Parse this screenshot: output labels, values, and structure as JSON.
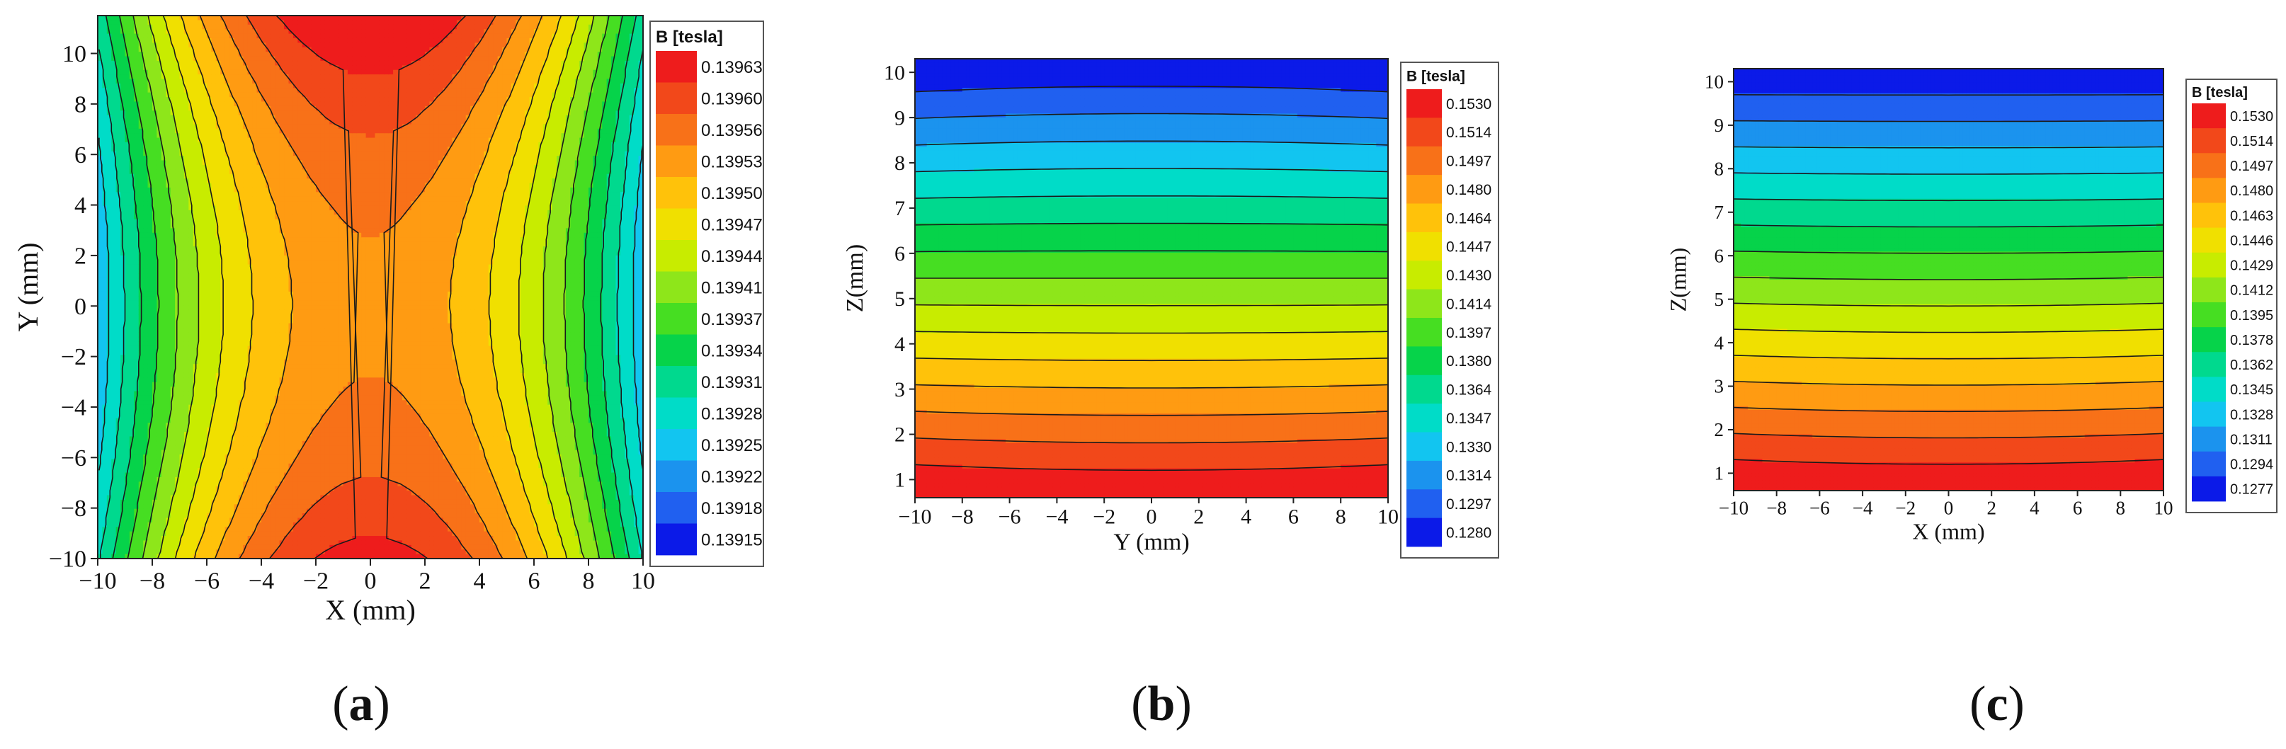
{
  "figure": {
    "panel_labels": [
      "a",
      "b",
      "c"
    ]
  },
  "chart_data": [
    {
      "type": "heatmap",
      "panel": "a",
      "xlabel": "X (mm)",
      "ylabel": "Y (mm)",
      "xlim": [
        -10,
        10
      ],
      "ylim": [
        -10,
        11.5
      ],
      "xticks": [
        -10,
        -8,
        -6,
        -4,
        -2,
        0,
        2,
        4,
        6,
        8,
        10
      ],
      "yticks": [
        -10,
        -8,
        -6,
        -4,
        -2,
        0,
        2,
        4,
        6,
        8,
        10
      ],
      "legend_title": "B [tesla]",
      "legend_labels": [
        "0.13963",
        "0.13960",
        "0.13956",
        "0.13953",
        "0.13950",
        "0.13947",
        "0.13944",
        "0.13941",
        "0.13937",
        "0.13934",
        "0.13931",
        "0.13928",
        "0.13925",
        "0.13922",
        "0.13918",
        "0.13915"
      ],
      "color_min": 0.13915,
      "color_max": 0.13963
    },
    {
      "type": "heatmap",
      "panel": "b",
      "xlabel": "Y (mm)",
      "ylabel": "Z(mm)",
      "xlim": [
        -10,
        10
      ],
      "ylim": [
        0.6,
        10.3
      ],
      "xticks": [
        -10,
        -8,
        -6,
        -4,
        -2,
        0,
        2,
        4,
        6,
        8,
        10
      ],
      "yticks": [
        1,
        2,
        3,
        4,
        5,
        6,
        7,
        8,
        9,
        10
      ],
      "legend_title": "B [tesla]",
      "legend_labels": [
        "0.1530",
        "0.1514",
        "0.1497",
        "0.1480",
        "0.1464",
        "0.1447",
        "0.1430",
        "0.1414",
        "0.1397",
        "0.1380",
        "0.1364",
        "0.1347",
        "0.1330",
        "0.1314",
        "0.1297",
        "0.1280"
      ],
      "color_min": 0.128,
      "color_max": 0.153
    },
    {
      "type": "heatmap",
      "panel": "c",
      "xlabel": "X (mm)",
      "ylabel": "Z(mm)",
      "xlim": [
        -10,
        10
      ],
      "ylim": [
        0.6,
        10.3
      ],
      "xticks": [
        -10,
        -8,
        -6,
        -4,
        -2,
        0,
        2,
        4,
        6,
        8,
        10
      ],
      "yticks": [
        1,
        2,
        3,
        4,
        5,
        6,
        7,
        8,
        9,
        10
      ],
      "legend_title": "B [tesla]",
      "legend_labels": [
        "0.1530",
        "0.1514",
        "0.1497",
        "0.1480",
        "0.1463",
        "0.1446",
        "0.1429",
        "0.1412",
        "0.1395",
        "0.1378",
        "0.1362",
        "0.1345",
        "0.1328",
        "0.1311",
        "0.1294",
        "0.1277"
      ],
      "color_min": 0.1277,
      "color_max": 0.153
    }
  ]
}
